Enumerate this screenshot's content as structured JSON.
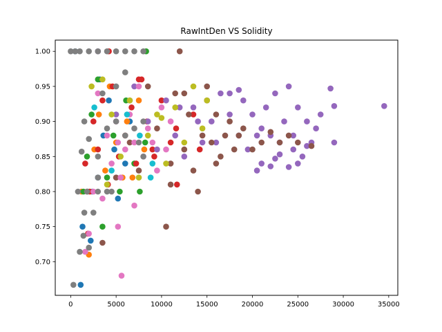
{
  "chart_data": {
    "type": "scatter",
    "title": "RawIntDen VS Solidity",
    "xlabel": "",
    "ylabel": "",
    "xlim": [
      -1700,
      36000
    ],
    "ylim": [
      0.652,
      1.016
    ],
    "xticks": [
      0,
      5000,
      10000,
      15000,
      20000,
      25000,
      30000,
      35000
    ],
    "xtick_labels": [
      "0",
      "5000",
      "10000",
      "15000",
      "20000",
      "25000",
      "30000",
      "35000"
    ],
    "yticks": [
      0.7,
      0.75,
      0.8,
      0.85,
      0.9,
      0.95,
      1.0
    ],
    "ytick_labels": [
      "0.70",
      "0.75",
      "0.80",
      "0.85",
      "0.90",
      "0.95",
      "1.00"
    ],
    "grid": false,
    "legend": "none",
    "colors": [
      "#1f77b4",
      "#ff7f0e",
      "#2ca02c",
      "#d62728",
      "#9467bd",
      "#8c564b",
      "#e377c2",
      "#7f7f7f",
      "#bcbd22",
      "#17becf"
    ],
    "series": [
      {
        "color": "#1f77b4",
        "points": [
          [
            500,
            1.0
          ],
          [
            1100,
            0.667
          ],
          [
            1300,
            0.75
          ],
          [
            2200,
            0.73
          ],
          [
            2400,
            0.8
          ],
          [
            3000,
            0.82
          ],
          [
            3200,
            0.96
          ],
          [
            3600,
            0.88
          ],
          [
            4200,
            0.93
          ],
          [
            4800,
            0.86
          ],
          [
            5200,
            0.79
          ],
          [
            6000,
            0.84
          ],
          [
            6500,
            0.9
          ]
        ]
      },
      {
        "color": "#ff7f0e",
        "points": [
          [
            1200,
            0.8
          ],
          [
            2000,
            0.71
          ],
          [
            2600,
            0.86
          ],
          [
            3100,
            0.91
          ],
          [
            3800,
            0.83
          ],
          [
            4300,
            0.95
          ],
          [
            5000,
            0.87
          ],
          [
            5700,
            0.82
          ],
          [
            6200,
            0.9
          ],
          [
            6800,
            0.82
          ],
          [
            7500,
            0.93
          ],
          [
            8100,
            0.86
          ]
        ]
      },
      {
        "color": "#2ca02c",
        "points": [
          [
            1400,
            0.8
          ],
          [
            1800,
            0.85
          ],
          [
            2300,
            0.91
          ],
          [
            3000,
            0.96
          ],
          [
            3500,
            0.75
          ],
          [
            4000,
            0.82
          ],
          [
            4700,
            0.88
          ],
          [
            5400,
            0.8
          ],
          [
            6100,
            0.93
          ],
          [
            7000,
            0.84
          ],
          [
            7600,
            0.8
          ],
          [
            8200,
            0.87
          ],
          [
            8300,
            1.0
          ]
        ]
      },
      {
        "color": "#d62728",
        "points": [
          [
            1600,
            0.84
          ],
          [
            2100,
            0.8
          ],
          [
            2500,
            0.9
          ],
          [
            3000,
            0.86
          ],
          [
            3500,
            0.93
          ],
          [
            4100,
            0.81
          ],
          [
            4600,
            0.95
          ],
          [
            5300,
            0.85
          ],
          [
            6000,
            0.88
          ],
          [
            6700,
            0.92
          ],
          [
            7200,
            0.84
          ],
          [
            7800,
            0.96
          ],
          [
            8400,
            0.9
          ],
          [
            9200,
            0.85
          ],
          [
            10000,
            0.93
          ],
          [
            11000,
            0.87
          ],
          [
            11600,
            0.89
          ],
          [
            13500,
            0.91
          ],
          [
            14200,
            0.86
          ],
          [
            1900,
            0.74
          ],
          [
            4200,
            1.0
          ],
          [
            7500,
            0.96
          ],
          [
            9000,
            0.86
          ],
          [
            11700,
            0.81
          ]
        ]
      },
      {
        "color": "#9467bd",
        "points": [
          [
            3000,
            1.0
          ],
          [
            5000,
            0.91
          ],
          [
            7000,
            0.95
          ],
          [
            8500,
            0.9
          ],
          [
            9500,
            0.86
          ],
          [
            10500,
            0.93
          ],
          [
            11500,
            0.88
          ],
          [
            12500,
            0.85
          ],
          [
            13500,
            0.92
          ],
          [
            14500,
            0.87
          ],
          [
            15500,
            0.9
          ],
          [
            16500,
            0.94
          ],
          [
            17500,
            0.91
          ],
          [
            18500,
            0.88
          ],
          [
            19000,
            0.93
          ],
          [
            19500,
            0.86
          ],
          [
            20000,
            0.91
          ],
          [
            20500,
            0.88
          ],
          [
            21000,
            0.89
          ],
          [
            21500,
            0.92
          ],
          [
            22000,
            0.88
          ],
          [
            22500,
            0.94
          ],
          [
            23000,
            0.87
          ],
          [
            23500,
            0.9
          ],
          [
            24000,
            0.95
          ],
          [
            24500,
            0.88
          ],
          [
            25000,
            0.92
          ],
          [
            25500,
            0.85
          ],
          [
            26000,
            0.9
          ],
          [
            26500,
            0.87
          ],
          [
            27000,
            0.89
          ],
          [
            27500,
            0.91
          ],
          [
            28600,
            0.947
          ],
          [
            29000,
            0.922
          ],
          [
            29000,
            0.87
          ],
          [
            34500,
            0.922
          ],
          [
            21000,
            0.84
          ],
          [
            22000,
            0.836
          ],
          [
            23000,
            0.853
          ],
          [
            24000,
            0.835
          ],
          [
            25000,
            0.84
          ],
          [
            17500,
            0.94
          ],
          [
            18500,
            0.945
          ],
          [
            12000,
            0.92
          ],
          [
            14000,
            0.9
          ],
          [
            16000,
            0.87
          ],
          [
            20500,
            0.83
          ],
          [
            22500,
            0.847
          ],
          [
            24500,
            0.86
          ],
          [
            26000,
            0.865
          ]
        ]
      },
      {
        "color": "#8c564b",
        "points": [
          [
            1800,
            0.8
          ],
          [
            3500,
            0.727
          ],
          [
            5000,
            0.82
          ],
          [
            6500,
            0.87
          ],
          [
            7500,
            0.83
          ],
          [
            8500,
            0.95
          ],
          [
            9500,
            0.89
          ],
          [
            10500,
            0.75
          ],
          [
            11000,
            0.81
          ],
          [
            11500,
            0.94
          ],
          [
            12000,
            1.0
          ],
          [
            12500,
            0.86
          ],
          [
            13000,
            0.91
          ],
          [
            13500,
            0.83
          ],
          [
            14000,
            0.8
          ],
          [
            14500,
            0.88
          ],
          [
            15000,
            0.93
          ],
          [
            15500,
            0.87
          ],
          [
            16000,
            0.91
          ],
          [
            16500,
            0.85
          ],
          [
            17000,
            0.88
          ],
          [
            17500,
            0.9
          ],
          [
            18000,
            0.86
          ],
          [
            18500,
            0.88
          ],
          [
            19000,
            0.89
          ],
          [
            20000,
            0.86
          ],
          [
            21000,
            0.87
          ],
          [
            22000,
            0.885
          ],
          [
            23000,
            0.87
          ],
          [
            24000,
            0.88
          ],
          [
            25000,
            0.87
          ],
          [
            26500,
            0.865
          ],
          [
            12500,
            0.94
          ],
          [
            11000,
            0.84
          ],
          [
            16000,
            0.84
          ],
          [
            15000,
            0.95
          ]
        ]
      },
      {
        "color": "#e377c2",
        "points": [
          [
            1600,
            0.714
          ],
          [
            2000,
            0.74
          ],
          [
            2500,
            0.8
          ],
          [
            3000,
            0.94
          ],
          [
            3500,
            0.79
          ],
          [
            4000,
            0.88
          ],
          [
            4500,
            0.84
          ],
          [
            5000,
            0.9
          ],
          [
            5500,
            0.82
          ],
          [
            5600,
            0.68
          ],
          [
            6000,
            0.86
          ],
          [
            6500,
            0.91
          ],
          [
            7000,
            0.78
          ],
          [
            7500,
            0.95
          ],
          [
            8000,
            0.85
          ],
          [
            8500,
            0.89
          ],
          [
            9000,
            0.87
          ],
          [
            9500,
            0.83
          ],
          [
            10000,
            0.92
          ],
          [
            10500,
            0.86
          ],
          [
            11000,
            0.9
          ],
          [
            5200,
            0.75
          ],
          [
            5200,
            0.87
          ],
          [
            7000,
            0.87
          ]
        ]
      },
      {
        "color": "#7f7f7f",
        "points": [
          [
            0,
            1.0
          ],
          [
            500,
            1.0
          ],
          [
            1000,
            1.0
          ],
          [
            2000,
            1.0
          ],
          [
            3000,
            1.0
          ],
          [
            4000,
            1.0
          ],
          [
            5000,
            1.0
          ],
          [
            6000,
            1.0
          ],
          [
            7000,
            1.0
          ],
          [
            8000,
            1.0
          ],
          [
            300,
            0.667
          ],
          [
            800,
            0.8
          ],
          [
            1000,
            0.714
          ],
          [
            1500,
            0.77
          ],
          [
            1800,
            0.8
          ],
          [
            2500,
            0.77
          ],
          [
            3000,
            0.8
          ],
          [
            4000,
            0.8
          ],
          [
            1200,
            0.857
          ],
          [
            1500,
            0.9
          ],
          [
            2000,
            0.875
          ],
          [
            3000,
            0.85
          ],
          [
            4000,
            0.89
          ],
          [
            5000,
            0.9
          ],
          [
            6000,
            0.88
          ],
          [
            7000,
            0.89
          ],
          [
            8000,
            0.9
          ],
          [
            3500,
            0.94
          ],
          [
            5000,
            0.95
          ],
          [
            6000,
            0.97
          ],
          [
            4500,
            0.8
          ],
          [
            2000,
            0.72
          ],
          [
            1400,
            0.737
          ],
          [
            6500,
            0.93
          ],
          [
            7500,
            0.87
          ],
          [
            3000,
            0.82
          ],
          [
            8000,
            0.85
          ]
        ]
      },
      {
        "color": "#bcbd22",
        "points": [
          [
            2300,
            0.95
          ],
          [
            3500,
            0.96
          ],
          [
            4500,
            0.91
          ],
          [
            5500,
            0.85
          ],
          [
            6500,
            0.93
          ],
          [
            7500,
            0.82
          ],
          [
            8500,
            0.88
          ],
          [
            9500,
            0.91
          ],
          [
            10500,
            0.84
          ],
          [
            11500,
            0.92
          ],
          [
            12500,
            0.87
          ],
          [
            13500,
            0.95
          ],
          [
            14500,
            0.89
          ],
          [
            15000,
            0.93
          ],
          [
            4000,
            0.81
          ],
          [
            10000,
            0.905
          ]
        ]
      },
      {
        "color": "#17becf",
        "points": [
          [
            2600,
            0.92
          ],
          [
            4500,
            0.83
          ],
          [
            6200,
            0.91
          ],
          [
            7600,
            0.88
          ],
          [
            9000,
            0.84
          ],
          [
            8800,
            0.82
          ]
        ]
      }
    ]
  }
}
